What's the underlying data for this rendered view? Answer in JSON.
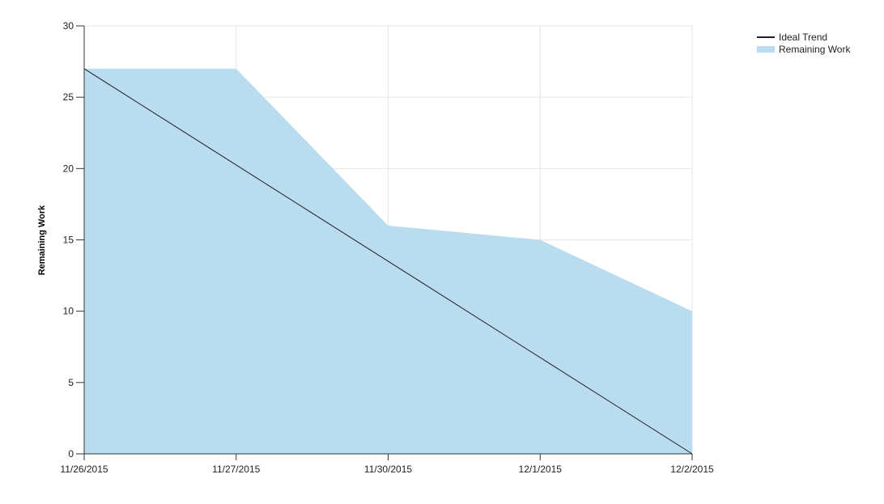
{
  "chart_data": {
    "type": "area",
    "categories": [
      "11/26/2015",
      "11/27/2015",
      "11/30/2015",
      "12/1/2015",
      "12/2/2015"
    ],
    "series": [
      {
        "name": "Remaining Work",
        "kind": "area",
        "values": [
          27,
          27,
          16,
          15,
          10
        ]
      },
      {
        "name": "Ideal Trend",
        "kind": "line",
        "values": [
          27,
          20.25,
          13.5,
          6.75,
          0
        ]
      }
    ],
    "title": "",
    "xlabel": "",
    "ylabel": "Remaining Work",
    "ylim": [
      0,
      30
    ],
    "yticks": [
      0,
      5,
      10,
      15,
      20,
      25,
      30
    ],
    "grid": true,
    "legend_position": "top-right",
    "colors": {
      "Remaining Work": "#b9ddee",
      "Ideal Trend": "#1f1f2e",
      "grid": "#e6e6e6",
      "axis": "#333333"
    }
  }
}
